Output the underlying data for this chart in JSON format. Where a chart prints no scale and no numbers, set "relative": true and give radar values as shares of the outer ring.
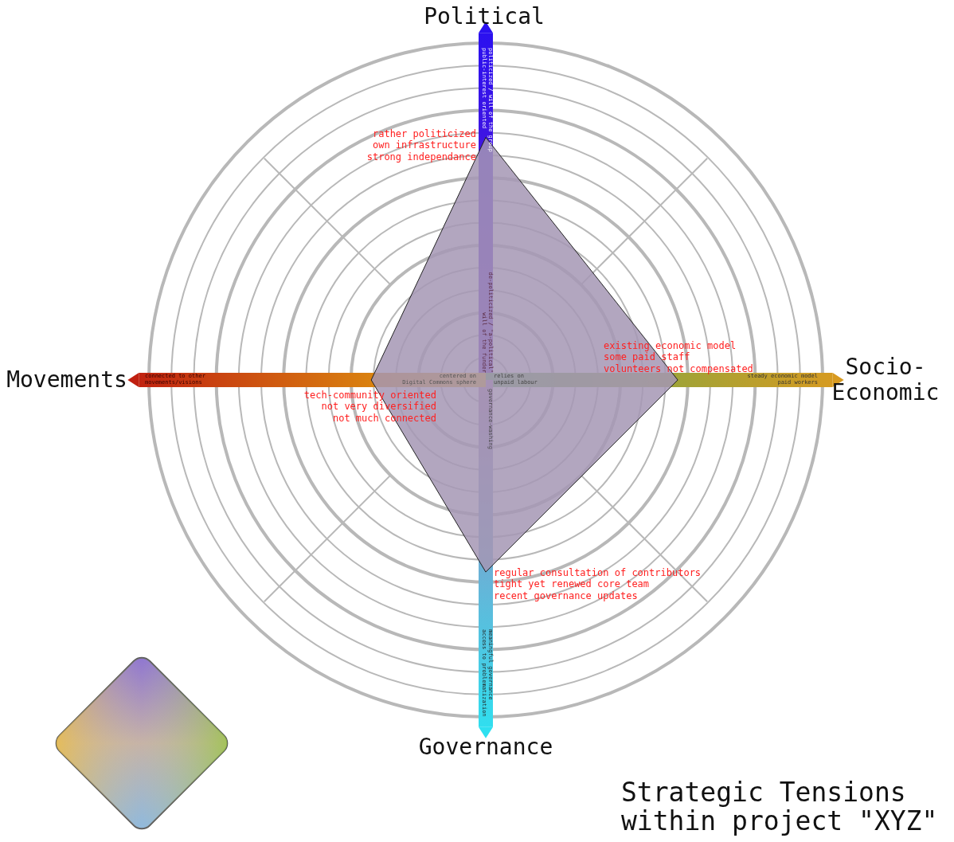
{
  "chart_data": {
    "type": "radar",
    "relative": true,
    "title": "Strategic Tensions\nwithin project \"XYZ\"",
    "categories": [
      "Political",
      "Socio-\nEconomic",
      "Governance",
      "Movements"
    ],
    "series": [
      {
        "color": "#a596b4",
        "values": [
          0.72,
          0.57,
          0.57,
          0.34
        ]
      }
    ],
    "annotations": [
      "politicized / will of the group\npublic-interest oriented",
      "de-politicized / \"a-political\"\nwill of the funder",
      "steady economic model\npaid workers",
      "relies on\nunpaid labour",
      "meaningful governance\naccess to problematization",
      "governance-washing",
      "connected to other\nmovements/visions",
      "centered on\nDigital Commons sphere",
      "rather politicized\nown infrastructure\nstrong independance",
      "existing economic model\nsome paid staff\nvolunteers not compensated",
      "regular consultation of contributors\ntight yet renewed core team\nrecent governance updates",
      "tech-community oriented\nnot very diversified\nnot much connected"
    ]
  }
}
